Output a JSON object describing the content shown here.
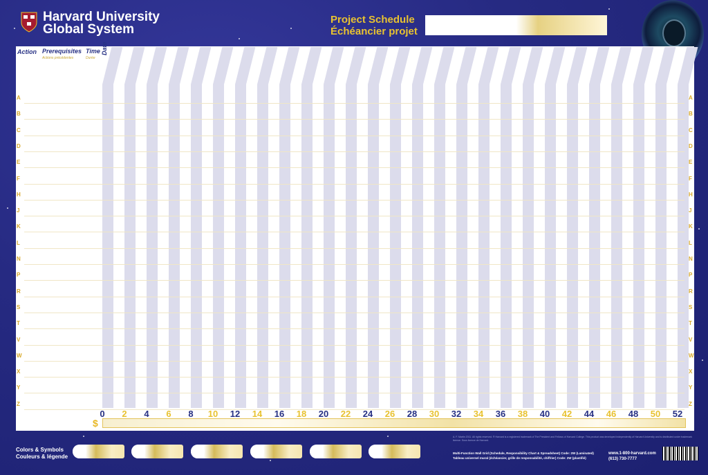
{
  "brand": {
    "line1": "Harvard University",
    "line2": "Global System"
  },
  "title": {
    "en": "Project Schedule",
    "fr": "Échéancier projet"
  },
  "columns": {
    "action": "Action",
    "prerequisites": "Prerequisites",
    "prerequisites_fr": "Actions précédentes",
    "time": "Time",
    "time_fr": "Durée",
    "date": "Date"
  },
  "rows": [
    "A",
    "B",
    "C",
    "D",
    "E",
    "F",
    "H",
    "J",
    "K",
    "L",
    "N",
    "P",
    "R",
    "S",
    "T",
    "V",
    "W",
    "X",
    "Y",
    "Z"
  ],
  "weeks": [
    "0",
    "2",
    "4",
    "6",
    "8",
    "10",
    "12",
    "14",
    "16",
    "18",
    "20",
    "22",
    "24",
    "26",
    "28",
    "30",
    "32",
    "34",
    "36",
    "38",
    "40",
    "42",
    "44",
    "46",
    "48",
    "50",
    "52"
  ],
  "dollar": "$",
  "legend": {
    "line1": "Colors & Symbols",
    "line2": "Couleurs & légende"
  },
  "fine_print": "A. F. Martin 2011. All rights reserved. ® Harvard is a registered trademark of The President and Fellows of Harvard College. This product was developed independently of Harvard University and is distributed under trademark license. Sous licence de Harvard.",
  "product": {
    "line1": "Multi-Function Wall Grid (Schedule, Responsibility Chart & Spreadsheet) Code: 2W (Laminated)",
    "line2": "Tableau universel mural (échéancier, grille de responsabilité, chiffrier) Code: 2W (plastifié)"
  },
  "contact": {
    "web": "www.1-800-harvard.com",
    "phone": "(613) 730-7777"
  },
  "colors": {
    "navy": "#273184",
    "gold": "#e8c230",
    "stripe": "#dcdcec"
  }
}
